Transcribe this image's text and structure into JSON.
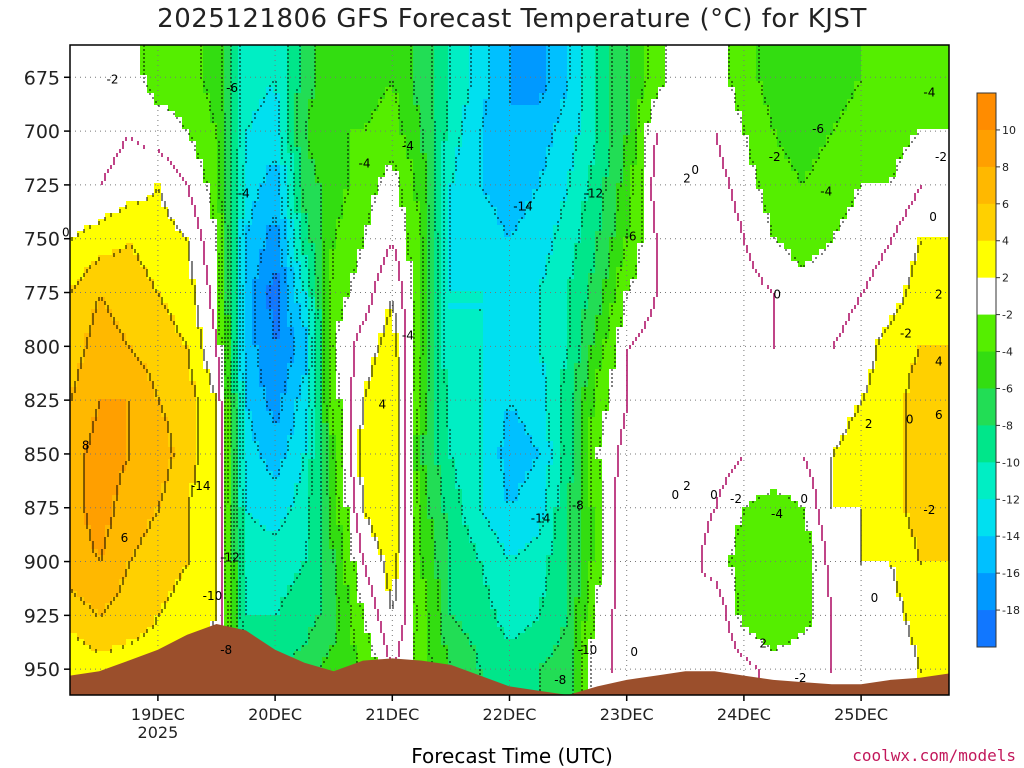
{
  "title": "2025121806 GFS Forecast Temperature (°C) for KJST",
  "credit": "coolwx.com/models",
  "chart_data": {
    "type": "heatmap",
    "title": "2025121806 GFS Forecast Temperature (°C) for KJST",
    "xlabel": "Forecast Time (UTC)",
    "ylabel": "",
    "x_ticks": [
      "19DEC",
      "20DEC",
      "21DEC",
      "22DEC",
      "23DEC",
      "24DEC",
      "25DEC"
    ],
    "x_year_label": "2025",
    "y_ticks": [
      675,
      700,
      725,
      750,
      775,
      800,
      825,
      850,
      875,
      900,
      925,
      950
    ],
    "ylim": [
      962,
      660
    ],
    "x_range_days": [
      18.25,
      25.75
    ],
    "colorbar": {
      "labels": [
        10,
        8,
        6,
        4,
        2,
        -2,
        -4,
        -6,
        -8,
        -10,
        -12,
        -14,
        -16,
        -18
      ],
      "bins": [
        {
          "min": 10,
          "max": 12,
          "color": "#ff8c00"
        },
        {
          "min": 8,
          "max": 10,
          "color": "#ff9f00"
        },
        {
          "min": 6,
          "max": 8,
          "color": "#ffb800"
        },
        {
          "min": 4,
          "max": 6,
          "color": "#ffd000"
        },
        {
          "min": 2,
          "max": 4,
          "color": "#ffff00"
        },
        {
          "min": -2,
          "max": 2,
          "color": "#ffffff"
        },
        {
          "min": -4,
          "max": -2,
          "color": "#55ee00"
        },
        {
          "min": -6,
          "max": -4,
          "color": "#33dd11"
        },
        {
          "min": -8,
          "max": -6,
          "color": "#22dd55"
        },
        {
          "min": -10,
          "max": -8,
          "color": "#00e68a"
        },
        {
          "min": -12,
          "max": -10,
          "color": "#00eec4"
        },
        {
          "min": -14,
          "max": -12,
          "color": "#00e0f0"
        },
        {
          "min": -16,
          "max": -14,
          "color": "#00c0ff"
        },
        {
          "min": -18,
          "max": -16,
          "color": "#0099ff"
        },
        {
          "min": -20,
          "max": -18,
          "color": "#1177ff"
        }
      ]
    },
    "profiles": [
      {
        "day": 18.25,
        "temps": [
          -2,
          -2,
          0,
          2,
          4,
          5,
          6,
          7,
          7,
          7,
          5,
          2
        ]
      },
      {
        "day": 18.5,
        "temps": [
          -2,
          -1,
          0,
          3,
          6,
          7,
          8,
          9,
          9,
          8,
          6,
          3
        ]
      },
      {
        "day": 18.75,
        "temps": [
          -1,
          0,
          1,
          4,
          5,
          6,
          8,
          8,
          7,
          6,
          5,
          3
        ]
      },
      {
        "day": 19.0,
        "temps": [
          -3,
          -1,
          2,
          3,
          4,
          5,
          6,
          7,
          6,
          5,
          4,
          3
        ]
      },
      {
        "day": 19.25,
        "temps": [
          -3,
          -2,
          0,
          2,
          3,
          4,
          5,
          5,
          4,
          4,
          3,
          2
        ]
      },
      {
        "day": 19.5,
        "temps": [
          -5,
          -4,
          -3,
          -2,
          -1,
          0,
          2,
          2,
          2,
          2,
          2,
          1
        ]
      },
      {
        "day": 19.75,
        "temps": [
          -11,
          -12,
          -13,
          -14,
          -15,
          -15,
          -14,
          -13,
          -12,
          -11,
          -10,
          -9
        ]
      },
      {
        "day": 20.0,
        "temps": [
          -12,
          -13,
          -15,
          -17,
          -19,
          -18,
          -17,
          -15,
          -13,
          -11,
          -10,
          -8
        ]
      },
      {
        "day": 20.25,
        "temps": [
          -7,
          -6,
          -7,
          -9,
          -12,
          -15,
          -13,
          -12,
          -11,
          -10,
          -9,
          -7
        ]
      },
      {
        "day": 20.5,
        "temps": [
          -4,
          -4,
          -5,
          -4,
          -3,
          -2,
          -3,
          -4,
          -5,
          -6,
          -7,
          -5
        ]
      },
      {
        "day": 20.75,
        "temps": [
          -5,
          -4,
          -3,
          -2,
          -1,
          1,
          2,
          3,
          2,
          0,
          -2,
          -4
        ]
      },
      {
        "day": 21.0,
        "temps": [
          -4,
          -3,
          -1,
          0,
          2,
          3,
          4,
          4,
          4,
          3,
          2,
          0
        ]
      },
      {
        "day": 21.25,
        "temps": [
          -7,
          -6,
          -5,
          -4,
          -4,
          -4,
          -5,
          -6,
          -5,
          -4,
          -3,
          -3
        ]
      },
      {
        "day": 21.5,
        "temps": [
          -10,
          -11,
          -12,
          -12,
          -12,
          -12,
          -11,
          -10,
          -9,
          -8,
          -8,
          -6
        ]
      },
      {
        "day": 21.75,
        "temps": [
          -13,
          -14,
          -14,
          -13,
          -12,
          -12,
          -12,
          -12,
          -12,
          -10,
          -9,
          -8
        ]
      },
      {
        "day": 22.0,
        "temps": [
          -16,
          -16,
          -15,
          -14,
          -13,
          -13,
          -14,
          -15,
          -14,
          -12,
          -11,
          -9
        ]
      },
      {
        "day": 22.25,
        "temps": [
          -17,
          -15,
          -14,
          -13,
          -12,
          -12,
          -13,
          -14,
          -13,
          -11,
          -10,
          -8
        ]
      },
      {
        "day": 22.5,
        "temps": [
          -14,
          -13,
          -12,
          -11,
          -10,
          -10,
          -9,
          -9,
          -8,
          -8,
          -8,
          -7
        ]
      },
      {
        "day": 22.75,
        "temps": [
          -10,
          -10,
          -9,
          -8,
          -7,
          -5,
          -3,
          -2,
          -3,
          -3,
          -1,
          0
        ]
      },
      {
        "day": 23.0,
        "temps": [
          -6,
          -6,
          -5,
          -4,
          -2,
          0,
          0,
          1,
          2,
          2,
          1,
          0
        ]
      },
      {
        "day": 23.25,
        "temps": [
          -3,
          0,
          1,
          0,
          0,
          1,
          1,
          2,
          1,
          1,
          1,
          0
        ]
      },
      {
        "day": 23.5,
        "temps": [
          0,
          0,
          1,
          1,
          1,
          0,
          1,
          2,
          1,
          1,
          0,
          1
        ]
      },
      {
        "day": 23.75,
        "temps": [
          -1,
          0,
          1,
          2,
          1,
          0,
          0,
          1,
          0,
          -1,
          2,
          2
        ]
      },
      {
        "day": 24.0,
        "temps": [
          -3,
          -2,
          -1,
          0,
          1,
          0,
          0,
          0,
          -2,
          -3,
          -3,
          1
        ]
      },
      {
        "day": 24.25,
        "temps": [
          -5,
          -4,
          -3,
          -2,
          0,
          0,
          1,
          0,
          -3,
          -4,
          -4,
          -1
        ]
      },
      {
        "day": 24.5,
        "temps": [
          -6,
          -5,
          -4,
          -3,
          -1,
          0,
          0,
          0,
          -2,
          -4,
          -3,
          0
        ]
      },
      {
        "day": 24.75,
        "temps": [
          -5,
          -4,
          -3,
          -2,
          -1,
          0,
          1,
          2,
          2,
          1,
          0,
          0
        ]
      },
      {
        "day": 25.0,
        "temps": [
          -4,
          -3,
          -2,
          -1,
          0,
          1,
          2,
          3,
          2,
          2,
          1,
          0
        ]
      },
      {
        "day": 25.25,
        "temps": [
          -4,
          -3,
          -2,
          0,
          1,
          3,
          3,
          3,
          3,
          2,
          1,
          0
        ]
      },
      {
        "day": 25.5,
        "temps": [
          -3,
          -2,
          0,
          2,
          3,
          4,
          5,
          5,
          5,
          4,
          3,
          2
        ]
      },
      {
        "day": 25.75,
        "temps": [
          -3,
          -2,
          0,
          2,
          3,
          4,
          5,
          6,
          5,
          4,
          3,
          2
        ]
      }
    ],
    "terrain_surface_hpa": [
      {
        "day": 18.25,
        "p": 953
      },
      {
        "day": 18.5,
        "p": 951
      },
      {
        "day": 18.75,
        "p": 946
      },
      {
        "day": 19.0,
        "p": 941
      },
      {
        "day": 19.25,
        "p": 934
      },
      {
        "day": 19.5,
        "p": 929
      },
      {
        "day": 19.75,
        "p": 932
      },
      {
        "day": 20.0,
        "p": 941
      },
      {
        "day": 20.25,
        "p": 947
      },
      {
        "day": 20.5,
        "p": 951
      },
      {
        "day": 20.75,
        "p": 946
      },
      {
        "day": 21.0,
        "p": 945
      },
      {
        "day": 21.25,
        "p": 946
      },
      {
        "day": 21.5,
        "p": 948
      },
      {
        "day": 21.75,
        "p": 953
      },
      {
        "day": 22.0,
        "p": 958
      },
      {
        "day": 22.25,
        "p": 960
      },
      {
        "day": 22.5,
        "p": 962
      },
      {
        "day": 22.75,
        "p": 958
      },
      {
        "day": 23.0,
        "p": 955
      },
      {
        "day": 23.25,
        "p": 953
      },
      {
        "day": 23.5,
        "p": 951
      },
      {
        "day": 23.75,
        "p": 951
      },
      {
        "day": 24.0,
        "p": 953
      },
      {
        "day": 24.25,
        "p": 955
      },
      {
        "day": 24.5,
        "p": 956
      },
      {
        "day": 24.75,
        "p": 957
      },
      {
        "day": 25.0,
        "p": 957
      },
      {
        "day": 25.25,
        "p": 955
      },
      {
        "day": 25.5,
        "p": 954
      },
      {
        "day": 25.75,
        "p": 952
      }
    ],
    "terrain_color": "#9b4f2c",
    "freezing_line_color": "#b0166a",
    "annotations": [
      {
        "text": "-2",
        "day": 18.63,
        "p": 676
      },
      {
        "text": "0",
        "day": 18.25,
        "p": 747
      },
      {
        "text": "8",
        "day": 18.42,
        "p": 846
      },
      {
        "text": "6",
        "day": 18.75,
        "p": 889
      },
      {
        "text": "-6",
        "day": 19.65,
        "p": 680
      },
      {
        "text": "-4",
        "day": 19.75,
        "p": 729
      },
      {
        "text": "-14",
        "day": 19.35,
        "p": 865
      },
      {
        "text": "-12",
        "day": 19.6,
        "p": 898
      },
      {
        "text": "-10",
        "day": 19.45,
        "p": 916
      },
      {
        "text": "-8",
        "day": 19.6,
        "p": 941
      },
      {
        "text": "-4",
        "day": 20.78,
        "p": 715
      },
      {
        "text": "-4",
        "day": 21.15,
        "p": 707
      },
      {
        "text": "-4",
        "day": 21.15,
        "p": 795
      },
      {
        "text": "4",
        "day": 20.95,
        "p": 827
      },
      {
        "text": "-14",
        "day": 22.1,
        "p": 735
      },
      {
        "text": "-12",
        "day": 22.7,
        "p": 729
      },
      {
        "text": "-6",
        "day": 23.05,
        "p": 749
      },
      {
        "text": "-14",
        "day": 22.25,
        "p": 880
      },
      {
        "text": "-8",
        "day": 22.6,
        "p": 874
      },
      {
        "text": "-10",
        "day": 22.65,
        "p": 941
      },
      {
        "text": "-8",
        "day": 22.45,
        "p": 955
      },
      {
        "text": "0",
        "day": 23.1,
        "p": 942
      },
      {
        "text": "0",
        "day": 23.62,
        "p": 718
      },
      {
        "text": "2",
        "day": 23.55,
        "p": 722
      },
      {
        "text": "-6",
        "day": 24.65,
        "p": 699
      },
      {
        "text": "-2",
        "day": 24.28,
        "p": 712
      },
      {
        "text": "-4",
        "day": 24.72,
        "p": 728
      },
      {
        "text": "-4",
        "day": 25.6,
        "p": 682
      },
      {
        "text": "-2",
        "day": 25.75,
        "p": 712
      },
      {
        "text": "0",
        "day": 25.65,
        "p": 740
      },
      {
        "text": "0",
        "day": 24.32,
        "p": 776
      },
      {
        "text": "2",
        "day": 25.75,
        "p": 776
      },
      {
        "text": "-2",
        "day": 25.4,
        "p": 794
      },
      {
        "text": "4",
        "day": 25.85,
        "p": 807
      },
      {
        "text": "2",
        "day": 25.1,
        "p": 836
      },
      {
        "text": "0",
        "day": 25.45,
        "p": 834
      },
      {
        "text": "6",
        "day": 26.05,
        "p": 832
      },
      {
        "text": "0",
        "day": 23.45,
        "p": 869
      },
      {
        "text": "2",
        "day": 23.55,
        "p": 865
      },
      {
        "text": "0",
        "day": 23.78,
        "p": 869
      },
      {
        "text": "-2",
        "day": 23.95,
        "p": 871
      },
      {
        "text": "-4",
        "day": 24.3,
        "p": 878
      },
      {
        "text": "0",
        "day": 24.55,
        "p": 871
      },
      {
        "text": "-2",
        "day": 25.6,
        "p": 876
      },
      {
        "text": "0",
        "day": 25.15,
        "p": 917
      },
      {
        "text": "2",
        "day": 24.2,
        "p": 938
      },
      {
        "text": "-2",
        "day": 24.5,
        "p": 954
      }
    ]
  }
}
